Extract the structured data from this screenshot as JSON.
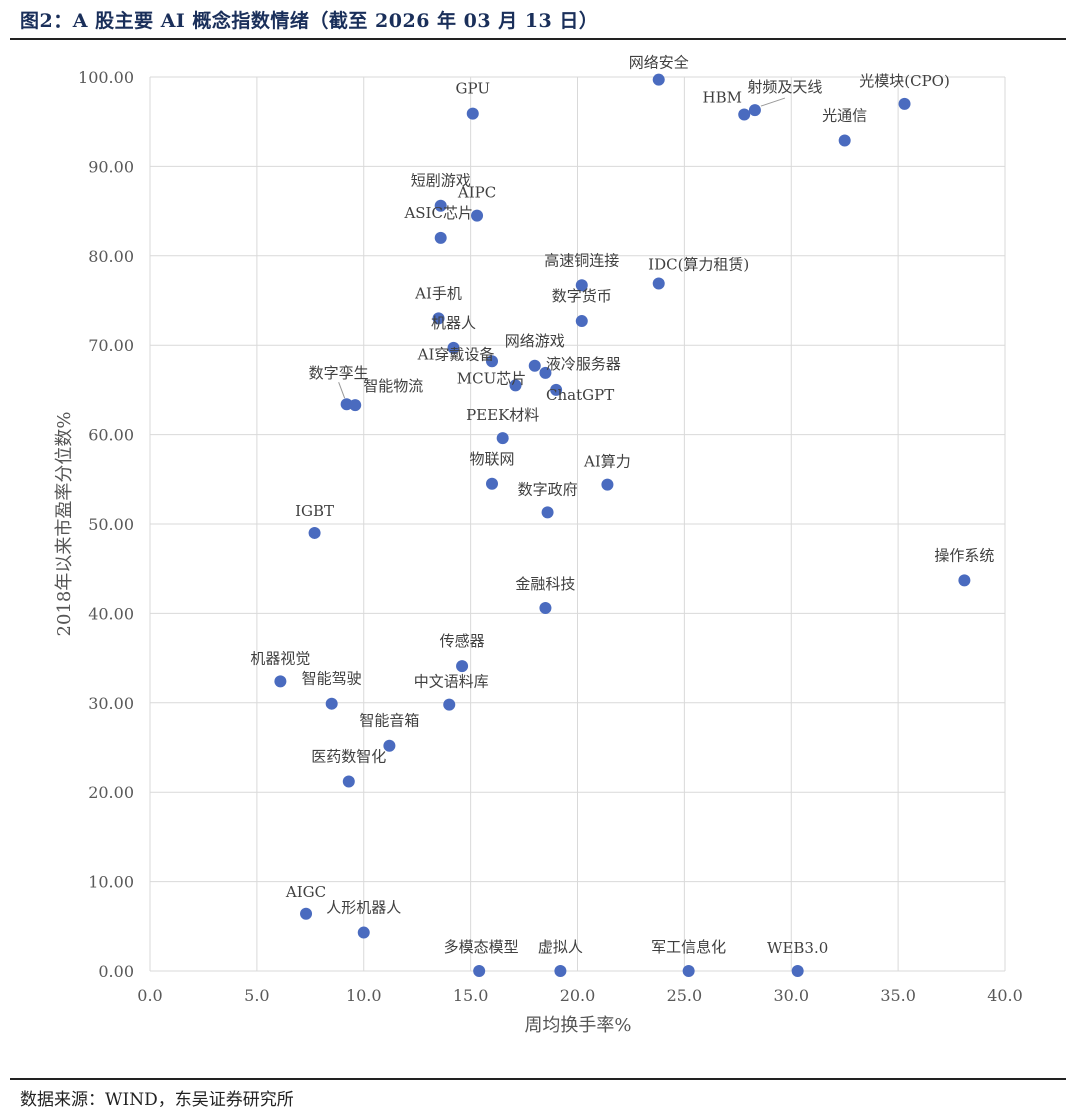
{
  "figure": {
    "title": "图2：A 股主要 AI 概念指数情绪（截至 2026 年 03 月 13 日）",
    "source": "数据来源：WIND，东吴证券研究所"
  },
  "chart_data": {
    "type": "scatter",
    "title": "",
    "xlabel": "周均换手率%",
    "ylabel": "2018年以来市盈率分位数%",
    "xlim": [
      0,
      40
    ],
    "ylim": [
      0,
      100
    ],
    "x_ticks": [
      "0.0",
      "5.0",
      "10.0",
      "15.0",
      "20.0",
      "25.0",
      "30.0",
      "35.0",
      "40.0"
    ],
    "y_ticks": [
      "0.00",
      "10.00",
      "20.00",
      "30.00",
      "40.00",
      "50.00",
      "60.00",
      "70.00",
      "80.00",
      "90.00",
      "100.00"
    ],
    "grid": true,
    "point_color": "#4a6bbf",
    "points": [
      {
        "label": "网络安全",
        "x": 23.8,
        "y": 99.7
      },
      {
        "label": "光模块(CPO)",
        "x": 35.3,
        "y": 97.0
      },
      {
        "label": "射频及天线",
        "x": 28.3,
        "y": 96.3
      },
      {
        "label": "HBM",
        "x": 27.8,
        "y": 95.8
      },
      {
        "label": "GPU",
        "x": 15.1,
        "y": 95.9
      },
      {
        "label": "光通信",
        "x": 32.5,
        "y": 92.9
      },
      {
        "label": "短剧游戏",
        "x": 13.6,
        "y": 85.6
      },
      {
        "label": "AIPC",
        "x": 15.3,
        "y": 84.5
      },
      {
        "label": "ASIC芯片",
        "x": 13.6,
        "y": 82.0
      },
      {
        "label": "IDC(算力租赁)",
        "x": 23.8,
        "y": 76.9
      },
      {
        "label": "高速铜连接",
        "x": 20.2,
        "y": 76.7
      },
      {
        "label": "AI手机",
        "x": 13.5,
        "y": 73.0
      },
      {
        "label": "数字货币",
        "x": 20.2,
        "y": 72.7
      },
      {
        "label": "机器人",
        "x": 14.2,
        "y": 69.7
      },
      {
        "label": "AI穿戴设备",
        "x": 16.0,
        "y": 68.2
      },
      {
        "label": "网络游戏",
        "x": 18.0,
        "y": 67.7
      },
      {
        "label": "液冷服务器",
        "x": 18.5,
        "y": 66.9
      },
      {
        "label": "MCU芯片",
        "x": 17.1,
        "y": 65.5
      },
      {
        "label": "ChatGPT",
        "x": 19.0,
        "y": 65.0
      },
      {
        "label": "数字孪生",
        "x": 9.2,
        "y": 63.4
      },
      {
        "label": "智能物流",
        "x": 9.6,
        "y": 63.3
      },
      {
        "label": "PEEK材料",
        "x": 16.5,
        "y": 59.6
      },
      {
        "label": "物联网",
        "x": 16.0,
        "y": 54.5
      },
      {
        "label": "AI算力",
        "x": 21.4,
        "y": 54.4
      },
      {
        "label": "数字政府",
        "x": 18.6,
        "y": 51.3
      },
      {
        "label": "IGBT",
        "x": 7.7,
        "y": 49.0
      },
      {
        "label": "操作系统",
        "x": 38.1,
        "y": 43.7
      },
      {
        "label": "金融科技",
        "x": 18.5,
        "y": 40.6
      },
      {
        "label": "传感器",
        "x": 14.6,
        "y": 34.1
      },
      {
        "label": "机器视觉",
        "x": 6.1,
        "y": 32.4
      },
      {
        "label": "智能驾驶",
        "x": 8.5,
        "y": 29.9
      },
      {
        "label": "中文语料库",
        "x": 14.0,
        "y": 29.8
      },
      {
        "label": "智能音箱",
        "x": 11.2,
        "y": 25.2
      },
      {
        "label": "医药数智化",
        "x": 9.3,
        "y": 21.2
      },
      {
        "label": "AIGC",
        "x": 7.3,
        "y": 6.4
      },
      {
        "label": "人形机器人",
        "x": 10.0,
        "y": 4.3
      },
      {
        "label": "多模态模型",
        "x": 15.4,
        "y": 0.0
      },
      {
        "label": "虚拟人",
        "x": 19.2,
        "y": 0.0
      },
      {
        "label": "军工信息化",
        "x": 25.2,
        "y": 0.0
      },
      {
        "label": "WEB3.0",
        "x": 30.3,
        "y": 0.0
      }
    ]
  }
}
